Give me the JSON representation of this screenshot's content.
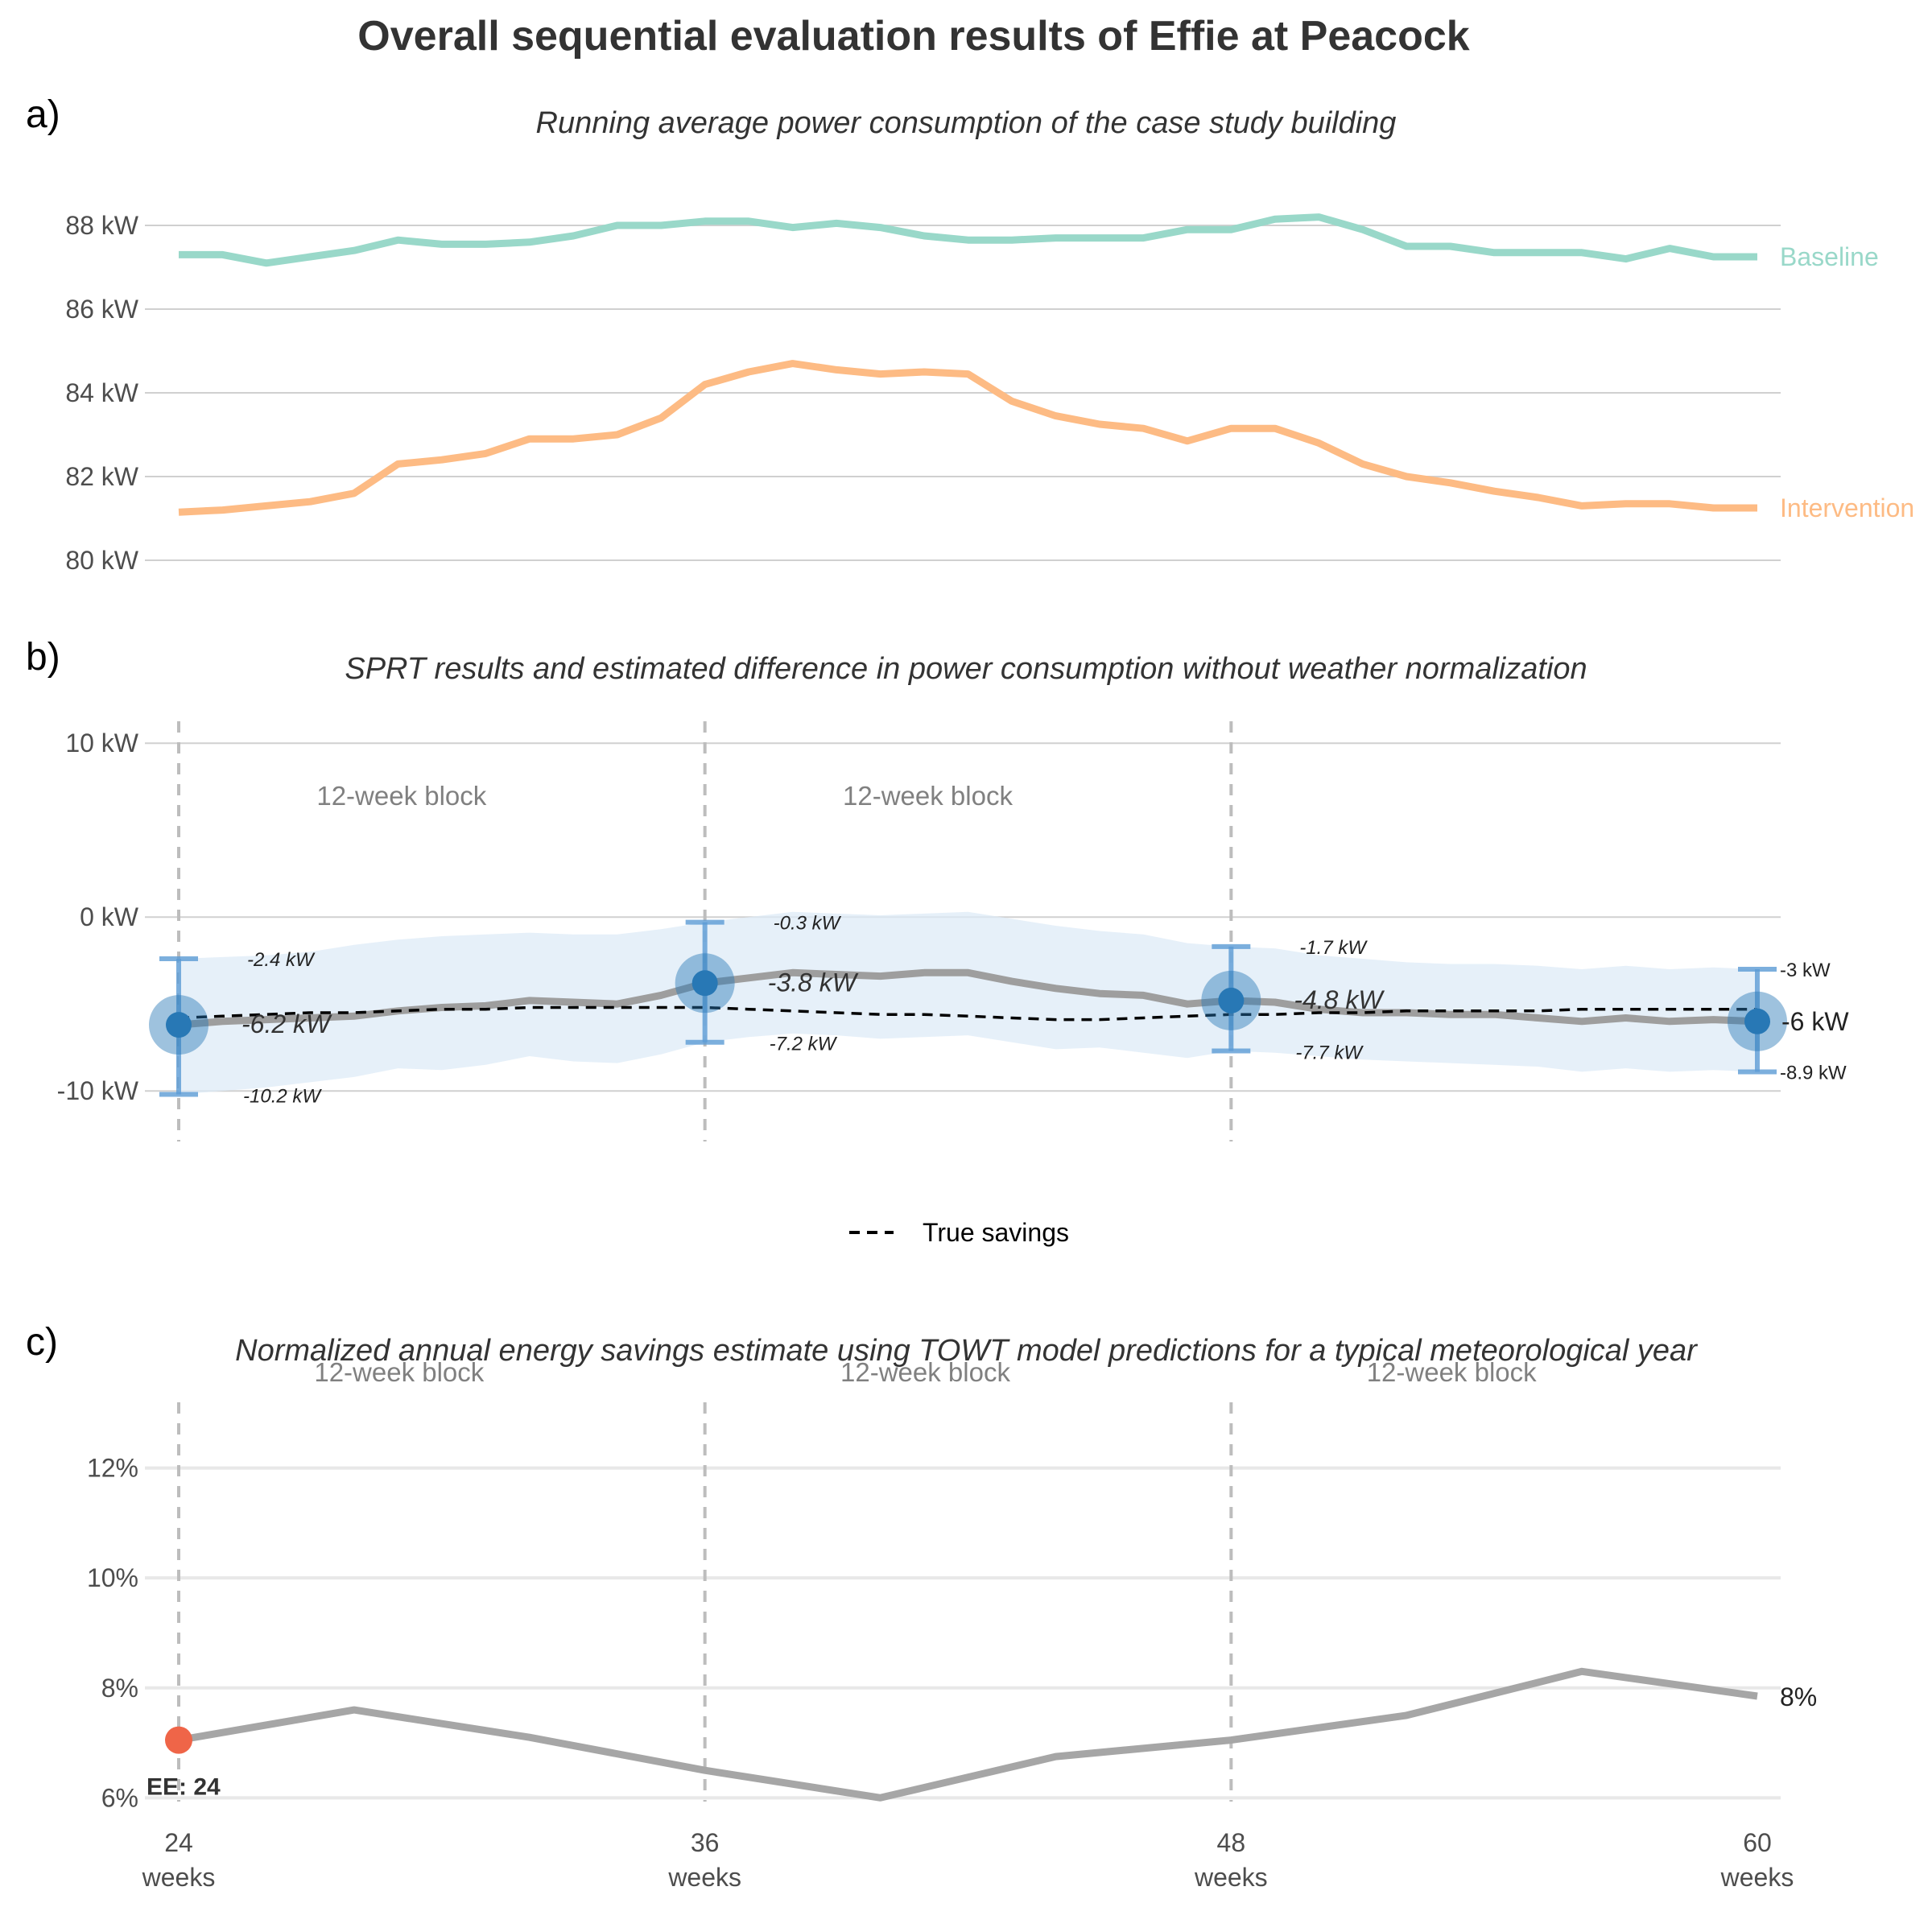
{
  "title": "Overall sequential evaluation results of Effie at Peacock",
  "colors": {
    "baseline": "#99d8c9",
    "intervention": "#fdbb84",
    "estimate_line": "#9e9e9e",
    "ci_band": "#deebf7",
    "point": "#2878b5",
    "errorbar": "#5b9bd5",
    "true_savings": "#000000",
    "early_stop": "#ef6548",
    "grid": "#d0d0d0",
    "vline": "#bdbdbd",
    "block_text": "#808080"
  },
  "chart_data": [
    {
      "panel_label": "a)",
      "type": "line",
      "subtitle": "Running average power consumption of the case study building",
      "x_range": [
        24,
        60
      ],
      "ylim": [
        79.5,
        89
      ],
      "y_ticks": [
        80,
        82,
        84,
        86,
        88
      ],
      "y_tick_labels": [
        "80 kW",
        "82 kW",
        "84 kW",
        "86 kW",
        "88 kW"
      ],
      "grid": "horizontal",
      "x": [
        24,
        25,
        26,
        27,
        28,
        29,
        30,
        31,
        32,
        33,
        34,
        35,
        36,
        37,
        38,
        39,
        40,
        41,
        42,
        43,
        44,
        45,
        46,
        47,
        48,
        49,
        50,
        51,
        52,
        53,
        54,
        55,
        56,
        57,
        58,
        59,
        60
      ],
      "series": [
        {
          "name": "Baseline",
          "color_key": "baseline",
          "values": [
            87.3,
            87.3,
            87.1,
            87.25,
            87.4,
            87.65,
            87.55,
            87.55,
            87.6,
            87.75,
            88.0,
            88.0,
            88.1,
            88.1,
            87.95,
            88.05,
            87.95,
            87.75,
            87.65,
            87.65,
            87.7,
            87.7,
            87.7,
            87.9,
            87.9,
            88.15,
            88.2,
            87.9,
            87.5,
            87.5,
            87.35,
            87.35,
            87.35,
            87.2,
            87.45,
            87.25,
            87.25
          ]
        },
        {
          "name": "Intervention",
          "color_key": "intervention",
          "values": [
            81.15,
            81.2,
            81.3,
            81.4,
            81.6,
            82.3,
            82.4,
            82.55,
            82.9,
            82.9,
            83.0,
            83.4,
            84.2,
            84.5,
            84.7,
            84.55,
            84.45,
            84.5,
            84.45,
            83.8,
            83.45,
            83.25,
            83.15,
            82.85,
            83.15,
            83.15,
            82.8,
            82.3,
            82.0,
            81.85,
            81.65,
            81.5,
            81.3,
            81.35,
            81.35,
            81.25,
            81.25
          ]
        }
      ]
    },
    {
      "panel_label": "b)",
      "type": "line",
      "subtitle": "SPRT results and estimated difference in power consumption without weather normalization",
      "x_range": [
        24,
        60
      ],
      "ylim": [
        -13,
        12
      ],
      "y_ticks": [
        -10,
        0,
        10
      ],
      "y_tick_labels": [
        "-10 kW",
        "0 kW",
        "10 kW"
      ],
      "grid": "horizontal",
      "block_label": "12-week block",
      "block_boundaries": [
        24,
        36,
        48
      ],
      "blocks": [
        {
          "start": 24,
          "end": 36,
          "label": "12-week block"
        },
        {
          "start": 36,
          "end": 48,
          "label": "12-week block"
        }
      ],
      "x": [
        24,
        25,
        26,
        27,
        28,
        29,
        30,
        31,
        32,
        33,
        34,
        35,
        36,
        37,
        38,
        39,
        40,
        41,
        42,
        43,
        44,
        45,
        46,
        47,
        48,
        49,
        50,
        51,
        52,
        53,
        54,
        55,
        56,
        57,
        58,
        59,
        60
      ],
      "estimate": [
        -6.2,
        -6.0,
        -5.9,
        -5.8,
        -5.7,
        -5.4,
        -5.2,
        -5.1,
        -4.8,
        -4.9,
        -5.0,
        -4.5,
        -3.8,
        -3.5,
        -3.2,
        -3.3,
        -3.4,
        -3.2,
        -3.2,
        -3.7,
        -4.1,
        -4.4,
        -4.5,
        -5.0,
        -4.8,
        -4.9,
        -5.3,
        -5.5,
        -5.5,
        -5.6,
        -5.6,
        -5.8,
        -6.0,
        -5.8,
        -6.0,
        -5.9,
        -6.0
      ],
      "ci_lower": [
        -10.2,
        -10.0,
        -9.8,
        -9.5,
        -9.2,
        -8.7,
        -8.8,
        -8.5,
        -8.0,
        -8.3,
        -8.4,
        -7.9,
        -7.2,
        -6.9,
        -6.7,
        -6.8,
        -7.0,
        -6.9,
        -6.8,
        -7.2,
        -7.6,
        -7.5,
        -7.8,
        -8.1,
        -7.7,
        -7.8,
        -8.0,
        -8.2,
        -8.3,
        -8.4,
        -8.5,
        -8.6,
        -8.9,
        -8.7,
        -8.9,
        -8.8,
        -8.9
      ],
      "ci_upper": [
        -2.4,
        -2.3,
        -2.2,
        -2.0,
        -1.6,
        -1.3,
        -1.1,
        -1.0,
        -0.9,
        -1.0,
        -1.0,
        -0.7,
        -0.3,
        0.0,
        0.3,
        0.2,
        0.1,
        0.2,
        0.3,
        -0.1,
        -0.5,
        -0.8,
        -1.0,
        -1.5,
        -1.7,
        -1.8,
        -2.2,
        -2.4,
        -2.6,
        -2.7,
        -2.7,
        -2.8,
        -3.0,
        -2.8,
        -3.0,
        -2.9,
        -3.0
      ],
      "true_savings": [
        -5.8,
        -5.7,
        -5.6,
        -5.5,
        -5.5,
        -5.4,
        -5.3,
        -5.3,
        -5.2,
        -5.2,
        -5.2,
        -5.2,
        -5.2,
        -5.3,
        -5.4,
        -5.5,
        -5.6,
        -5.6,
        -5.7,
        -5.8,
        -5.9,
        -5.9,
        -5.8,
        -5.7,
        -5.6,
        -5.6,
        -5.5,
        -5.5,
        -5.4,
        -5.4,
        -5.4,
        -5.4,
        -5.3,
        -5.3,
        -5.3,
        -5.3,
        -5.3
      ],
      "checkpoints": [
        {
          "x": 24,
          "estimate": -6.2,
          "lower": -10.2,
          "upper": -2.4,
          "estimate_label": "-6.2 kW",
          "lower_label": "-10.2 kW",
          "upper_label": "-2.4 kW"
        },
        {
          "x": 36,
          "estimate": -3.8,
          "lower": -7.2,
          "upper": -0.3,
          "estimate_label": "-3.8 kW",
          "lower_label": "-7.2 kW",
          "upper_label": "-0.3 kW"
        },
        {
          "x": 48,
          "estimate": -4.8,
          "lower": -7.7,
          "upper": -1.7,
          "estimate_label": "-4.8 kW",
          "lower_label": "-7.7 kW",
          "upper_label": "-1.7 kW"
        },
        {
          "x": 60,
          "estimate": -6.0,
          "lower": -8.9,
          "upper": -3.0,
          "estimate_label": "-6 kW",
          "lower_label": "-8.9 kW",
          "upper_label": "-3 kW"
        }
      ],
      "legend": {
        "label": "True savings",
        "placement": "bottom-center"
      }
    },
    {
      "panel_label": "c)",
      "type": "line",
      "subtitle": "Normalized annual energy savings estimate using TOWT model predictions for a typical meteorological year",
      "x_range": [
        24,
        60
      ],
      "ylim": [
        5.8,
        14
      ],
      "y_ticks": [
        6,
        8,
        10,
        12
      ],
      "y_tick_labels": [
        "6%",
        "8%",
        "10%",
        "12%"
      ],
      "grid": "horizontal",
      "block_boundaries": [
        24,
        36,
        48
      ],
      "blocks": [
        {
          "start": 24,
          "end": 36,
          "label": "12-week block"
        },
        {
          "start": 36,
          "end": 48,
          "label": "12-week block"
        },
        {
          "start": 48,
          "end": 60,
          "label": "12-week block"
        }
      ],
      "x": [
        24,
        28,
        32,
        36,
        40,
        44,
        48,
        52,
        56,
        60
      ],
      "values": [
        7.05,
        7.6,
        7.1,
        6.5,
        6.0,
        6.75,
        7.05,
        7.5,
        8.3,
        7.85
      ],
      "end_label": "8%",
      "early_stop": {
        "x": 24,
        "value": 7.05,
        "label": "EE: 24"
      },
      "x_ticks": [
        24,
        36,
        48,
        60
      ],
      "x_tick_labels": [
        "24",
        "36",
        "48",
        "60"
      ],
      "x_unit": "weeks"
    }
  ]
}
